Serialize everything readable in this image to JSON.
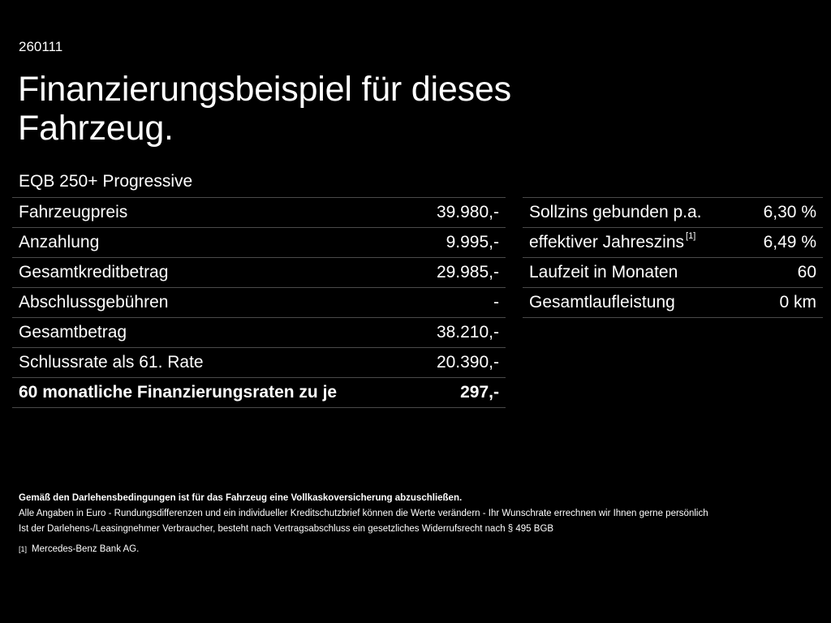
{
  "header": {
    "code": "260111",
    "title": "Finanzierungsbeispiel für dieses Fahrzeug.",
    "model": "EQB 250+ Progressive"
  },
  "left_table": {
    "rows": [
      {
        "label": "Fahrzeugpreis",
        "value": "39.980,-"
      },
      {
        "label": "Anzahlung",
        "value": "9.995,-"
      },
      {
        "label": "Gesamtkreditbetrag",
        "value": "29.985,-"
      },
      {
        "label": "Abschlussgebühren",
        "value": "-"
      },
      {
        "label": "Gesamtbetrag",
        "value": "38.210,-"
      },
      {
        "label": "Schlussrate als 61. Rate",
        "value": "20.390,-"
      }
    ],
    "summary": {
      "label": "60 monatliche Finanzierungsraten zu je",
      "value": "297,-"
    }
  },
  "right_table": {
    "rows": [
      {
        "label": "Sollzins gebunden p.a.",
        "value": "6,30 %"
      },
      {
        "label": "effektiver Jahreszins",
        "footnote": "[1]",
        "value": "6,49 %"
      },
      {
        "label": "Laufzeit in Monaten",
        "value": "60"
      },
      {
        "label": "Gesamtlaufleistung",
        "value": "0 km"
      }
    ]
  },
  "notes": {
    "insurance": "Gemäß den Darlehensbedingungen ist für das Fahrzeug eine Vollkaskoversicherung abzuschließen.",
    "disclaimer": "Alle Angaben in Euro - Rundungsdifferenzen und ein individueller Kreditschutzbrief können die Werte verändern - Ihr Wunschrate errechnen wir Ihnen gerne persönlich",
    "withdrawal": "Ist der Darlehens-/Leasingnehmer Verbraucher, besteht nach Vertragsabschluss ein gesetzliches Widerrufsrecht nach § 495 BGB",
    "footnote_marker": "[1]",
    "footnote_text": "Mercedes-Benz Bank AG."
  }
}
